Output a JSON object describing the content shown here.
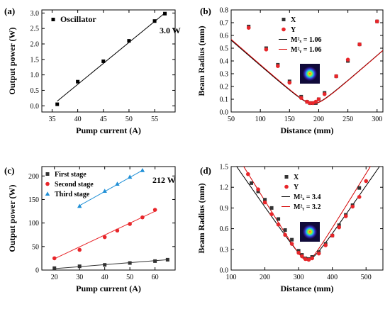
{
  "panels": [
    {
      "label": "(a)"
    },
    {
      "label": "(b)"
    },
    {
      "label": "(c)"
    },
    {
      "label": "(d)"
    }
  ],
  "colors": {
    "black": "#000000",
    "red": "#e8262a",
    "blue": "#1f8fd6",
    "redfit": "#d40000",
    "bluefit": "#1f8fd6"
  },
  "chart_data": [
    {
      "type": "scatter",
      "panel": "(a)",
      "xlabel": "Pump current (A)",
      "ylabel": "Output power (W)",
      "xlim": [
        33,
        59
      ],
      "ylim": [
        -0.2,
        3.1
      ],
      "xticks": [
        35,
        40,
        45,
        50,
        55
      ],
      "yticks": [
        0.0,
        0.5,
        1.0,
        1.5,
        2.0,
        2.5,
        3.0
      ],
      "ytick_labels": [
        "0.0",
        "0.5",
        "1.0",
        "1.5",
        "2.0",
        "2.5",
        "3.0"
      ],
      "annotation": "3.0 W",
      "legend": [
        {
          "name": "Oscillator",
          "marker": "square",
          "color": "#000000"
        }
      ],
      "series": [
        {
          "name": "Oscillator",
          "color": "#000000",
          "marker": "square",
          "x": [
            36,
            40,
            45,
            50,
            55,
            57
          ],
          "y": [
            0.05,
            0.78,
            1.44,
            2.1,
            2.74,
            2.98
          ],
          "fit": {
            "x": [
              36,
              57
            ],
            "y": [
              0.15,
              3.0
            ],
            "color": "#000000"
          }
        }
      ]
    },
    {
      "type": "scatter",
      "panel": "(b)",
      "xlabel": "Distance (mm)",
      "ylabel": "Beam Radius (mm)",
      "xlim": [
        50,
        310
      ],
      "ylim": [
        0.0,
        0.8
      ],
      "xticks": [
        50,
        100,
        150,
        200,
        250,
        300
      ],
      "yticks": [
        0.0,
        0.1,
        0.2,
        0.3,
        0.4,
        0.5,
        0.6,
        0.7,
        0.8
      ],
      "ytick_labels": [
        "0.0",
        "0.1",
        "0.2",
        "0.3",
        "0.4",
        "0.5",
        "0.6",
        "0.7",
        "0.8"
      ],
      "legend": [
        {
          "name": "X",
          "marker": "square",
          "color": "#333333"
        },
        {
          "name": "Y",
          "marker": "circle",
          "color": "#e8262a"
        },
        {
          "name": "M²ₓ = 1.06",
          "line": "#000000"
        },
        {
          "name": "M²ᵧ = 1.06",
          "line": "#d40000"
        }
      ],
      "series": [
        {
          "name": "X",
          "color": "#333333",
          "marker": "square",
          "x": [
            80,
            110,
            130,
            150,
            170,
            180,
            185,
            190,
            195,
            200,
            210,
            230,
            250,
            270,
            300
          ],
          "y": [
            0.67,
            0.5,
            0.37,
            0.24,
            0.12,
            0.08,
            0.07,
            0.07,
            0.07,
            0.1,
            0.15,
            0.28,
            0.4,
            0.53,
            0.71
          ]
        },
        {
          "name": "Y",
          "color": "#e8262a",
          "marker": "circle",
          "x": [
            80,
            110,
            130,
            150,
            170,
            180,
            185,
            190,
            195,
            200,
            210,
            230,
            250,
            270,
            300
          ],
          "y": [
            0.66,
            0.49,
            0.36,
            0.23,
            0.11,
            0.08,
            0.07,
            0.07,
            0.08,
            0.1,
            0.14,
            0.28,
            0.41,
            0.53,
            0.71
          ]
        }
      ],
      "fits": [
        {
          "color": "#000000",
          "w0": 0.065,
          "z0": 190,
          "zr": 16.3
        },
        {
          "color": "#d40000",
          "w0": 0.065,
          "z0": 191,
          "zr": 16.2
        }
      ]
    },
    {
      "type": "scatter",
      "panel": "(c)",
      "xlabel": "Pump current (A)",
      "ylabel": "Output power (W)",
      "xlim": [
        15,
        68
      ],
      "ylim": [
        0,
        220
      ],
      "xticks": [
        20,
        30,
        40,
        50,
        60
      ],
      "yticks": [
        0,
        50,
        100,
        150,
        200
      ],
      "ytick_labels": [
        "0",
        "50",
        "100",
        "150",
        "200"
      ],
      "annotation": "212 W",
      "legend": [
        {
          "name": "First stage",
          "marker": "square",
          "color": "#333333"
        },
        {
          "name": "Second stage",
          "marker": "circle",
          "color": "#e8262a"
        },
        {
          "name": "Third stage",
          "marker": "triangle",
          "color": "#1f8fd6"
        }
      ],
      "series": [
        {
          "name": "First stage",
          "color": "#333333",
          "marker": "square",
          "x": [
            20,
            30,
            40,
            50,
            60,
            65
          ],
          "y": [
            4,
            8,
            11,
            15,
            19,
            22
          ],
          "fit": {
            "x": [
              20,
              65
            ],
            "y": [
              3,
              22
            ],
            "color": "#333333"
          }
        },
        {
          "name": "Second stage",
          "color": "#e8262a",
          "marker": "circle",
          "x": [
            20,
            30,
            40,
            45,
            50,
            55,
            60
          ],
          "y": [
            25,
            43,
            70,
            84,
            98,
            112,
            128
          ],
          "fit": {
            "x": [
              20,
              60
            ],
            "y": [
              24,
              125
            ],
            "color": "#e8262a"
          }
        },
        {
          "name": "Third stage",
          "color": "#1f8fd6",
          "marker": "triangle",
          "x": [
            30,
            40,
            45,
            50,
            55
          ],
          "y": [
            136,
            168,
            183,
            198,
            212
          ],
          "fit": {
            "x": [
              30,
              55
            ],
            "y": [
              137,
              212
            ],
            "color": "#1f8fd6"
          }
        }
      ]
    },
    {
      "type": "scatter",
      "panel": "(d)",
      "xlabel": "Distance (mm)",
      "ylabel": "Beam Radius (mm)",
      "xlim": [
        100,
        550
      ],
      "ylim": [
        0.0,
        1.5
      ],
      "xticks": [
        100,
        200,
        300,
        400,
        500
      ],
      "yticks": [
        0.0,
        0.3,
        0.6,
        0.9,
        1.2,
        1.5
      ],
      "ytick_labels": [
        "0.0",
        "0.3",
        "0.6",
        "0.9",
        "1.2",
        "1.5"
      ],
      "legend": [
        {
          "name": "X",
          "marker": "square",
          "color": "#333333"
        },
        {
          "name": "Y",
          "marker": "circle",
          "color": "#e8262a"
        },
        {
          "name": "M²ₓ = 3.4",
          "line": "#000000"
        },
        {
          "name": "M²ᵧ = 3.2",
          "line": "#d40000"
        }
      ],
      "series": [
        {
          "name": "X",
          "color": "#333333",
          "marker": "square",
          "x": [
            160,
            180,
            200,
            220,
            240,
            260,
            280,
            300,
            310,
            320,
            330,
            340,
            360,
            380,
            400,
            420,
            440,
            460,
            480
          ],
          "y": [
            1.26,
            1.14,
            1.02,
            0.9,
            0.74,
            0.58,
            0.44,
            0.28,
            0.22,
            0.17,
            0.16,
            0.19,
            0.26,
            0.38,
            0.5,
            0.65,
            0.8,
            0.94,
            1.19
          ]
        },
        {
          "name": "Y",
          "color": "#e8262a",
          "marker": "circle",
          "x": [
            150,
            180,
            200,
            220,
            240,
            260,
            280,
            300,
            310,
            320,
            330,
            340,
            360,
            380,
            400,
            420,
            440,
            460,
            480,
            500
          ],
          "y": [
            1.39,
            1.17,
            0.98,
            0.81,
            0.66,
            0.51,
            0.38,
            0.25,
            0.2,
            0.16,
            0.15,
            0.17,
            0.24,
            0.36,
            0.5,
            0.62,
            0.78,
            0.92,
            1.06,
            1.29
          ]
        }
      ],
      "fits": [
        {
          "color": "#000000",
          "w0": 0.155,
          "z0": 328,
          "zr": 22.0
        },
        {
          "color": "#d40000",
          "w0": 0.14,
          "z0": 325,
          "zr": 17.6
        }
      ]
    }
  ]
}
